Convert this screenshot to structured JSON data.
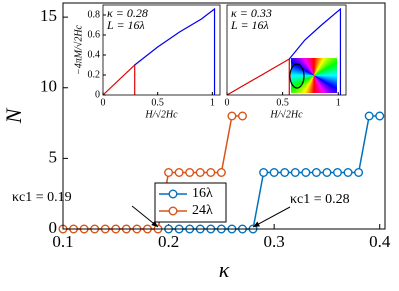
{
  "chart_data": [
    {
      "type": "line",
      "x_label": "κ",
      "y_label": "N",
      "xlim": [
        0.1,
        0.405
      ],
      "ylim": [
        0,
        16
      ],
      "xticks": [
        0.1,
        0.2,
        0.3,
        0.4
      ],
      "yticks": [
        0,
        5,
        10,
        15
      ],
      "markers": true,
      "series": [
        {
          "name": "16λ",
          "color": "#0072bd",
          "x": [
            0.2,
            0.21,
            0.22,
            0.23,
            0.24,
            0.25,
            0.26,
            0.27,
            0.28,
            0.29,
            0.3,
            0.31,
            0.32,
            0.33,
            0.34,
            0.35,
            0.36,
            0.37,
            0.38,
            0.39,
            0.4
          ],
          "values": [
            0,
            0,
            0,
            0,
            0,
            0,
            0,
            0,
            0,
            4,
            4,
            4,
            4,
            4,
            4,
            4,
            4,
            4,
            4,
            8,
            8
          ]
        },
        {
          "name": "24λ",
          "color": "#d95319",
          "x": [
            0.1,
            0.11,
            0.12,
            0.13,
            0.14,
            0.15,
            0.16,
            0.17,
            0.18,
            0.19,
            0.2,
            0.21,
            0.22,
            0.23,
            0.24,
            0.25,
            0.26,
            0.27
          ],
          "values": [
            0,
            0,
            0,
            0,
            0,
            0,
            0,
            0,
            0,
            0,
            4,
            4,
            4,
            4,
            4,
            4,
            8,
            8
          ]
        }
      ],
      "annotations": [
        {
          "text": "κc1 = 0.19",
          "x": 0.19,
          "y": 0
        },
        {
          "text": "κc1 = 0.28",
          "x": 0.28,
          "y": 0
        }
      ]
    },
    {
      "type": "line",
      "x_label": "H/√2Hc",
      "y_label": "−4πM/√2Hc",
      "xlim": [
        0,
        1.07
      ],
      "ylim": [
        0,
        0.9
      ],
      "xticks": [
        0,
        0.5,
        1
      ],
      "yticks": [
        0,
        0.2,
        0.4,
        0.6,
        0.8
      ],
      "notes": [
        "κ = 0.28",
        "L = 16λ"
      ],
      "series": [
        {
          "color": "#e00000",
          "x": [
            0,
            0.29,
            0.29
          ],
          "values": [
            0,
            0.3,
            0
          ]
        },
        {
          "color": "#0000ee",
          "x": [
            0.29,
            0.5,
            0.7,
            0.9,
            1.02,
            1.02
          ],
          "values": [
            0.3,
            0.48,
            0.63,
            0.76,
            0.86,
            0
          ]
        }
      ]
    },
    {
      "type": "line",
      "x_label": "H/√2Hc",
      "xlim": [
        0,
        1.07
      ],
      "ylim": [
        0,
        0.9
      ],
      "xticks": [
        0,
        0.5,
        1
      ],
      "notes": [
        "κ = 0.33",
        "L = 16λ"
      ],
      "series": [
        {
          "color": "#e00000",
          "x": [
            0,
            0.56,
            0.56
          ],
          "values": [
            0,
            0.36,
            0
          ]
        },
        {
          "color": "#0000ee",
          "x": [
            0.56,
            0.7,
            0.85,
            1.02,
            1.02
          ],
          "values": [
            0.36,
            0.55,
            0.7,
            0.86,
            0
          ]
        }
      ]
    }
  ]
}
